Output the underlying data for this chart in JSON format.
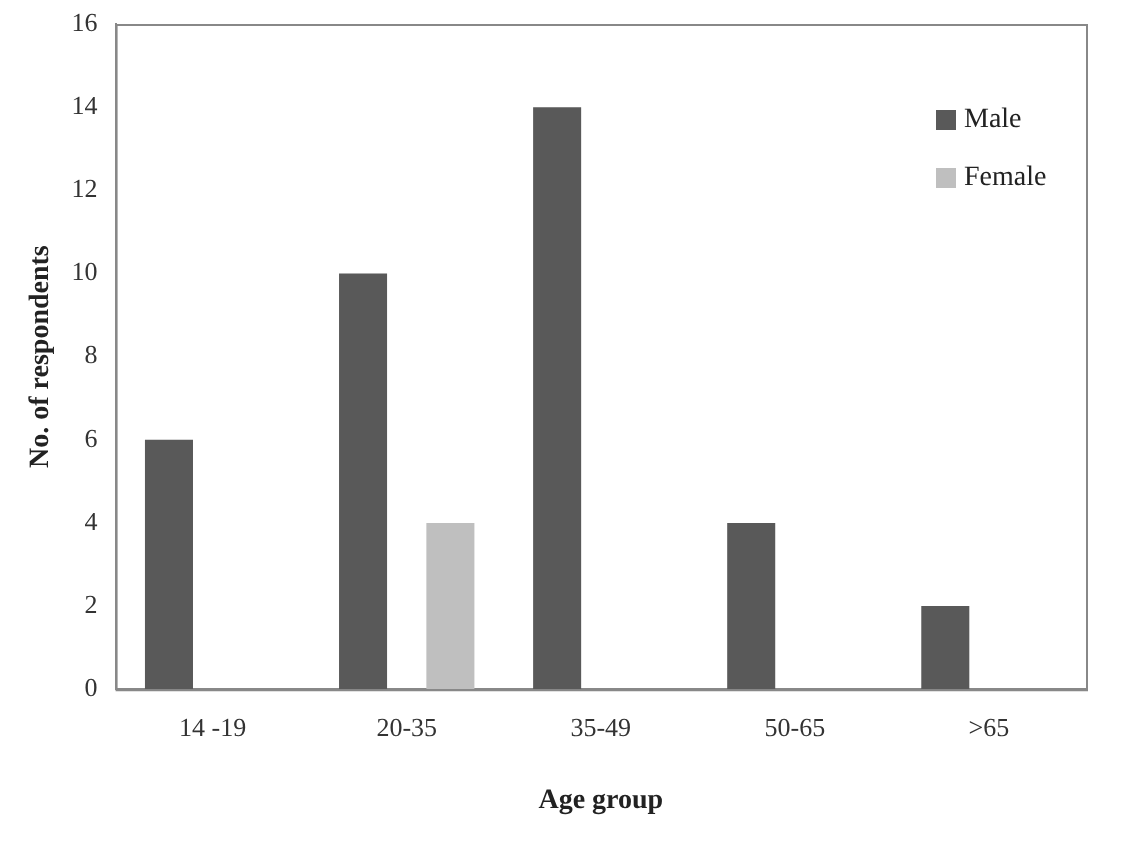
{
  "chart_data": {
    "type": "bar",
    "xlabel": "Age group",
    "ylabel": "No. of respondents",
    "categories": [
      "14 -19",
      "20-35",
      "35-49",
      "50-65",
      ">65"
    ],
    "series": [
      {
        "name": "Male",
        "color": "#595959",
        "values": [
          6,
          10,
          14,
          4,
          2
        ]
      },
      {
        "name": "Female",
        "color": "#bfbfbf",
        "values": [
          0,
          4,
          0,
          0,
          0
        ]
      }
    ],
    "ylim": [
      0,
      16
    ],
    "yticks": [
      0,
      2,
      4,
      6,
      8,
      10,
      12,
      14,
      16
    ],
    "grid": false,
    "legend": "top right"
  }
}
